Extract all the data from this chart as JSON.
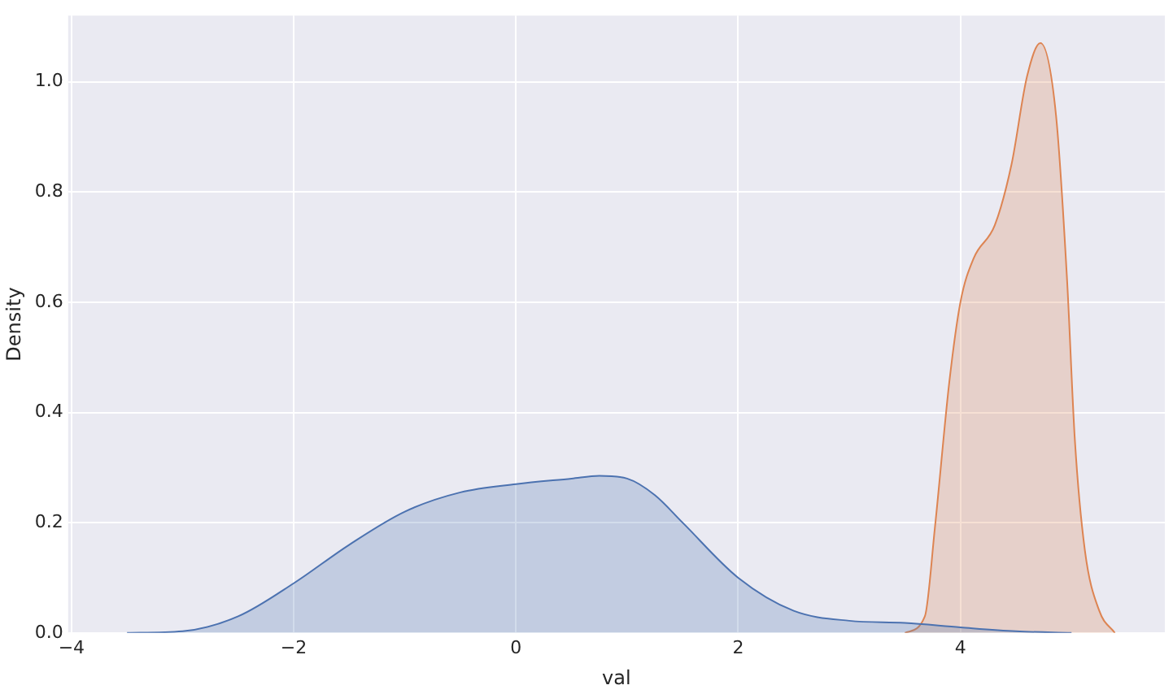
{
  "chart_data": {
    "type": "area",
    "xlabel": "val",
    "ylabel": "Density",
    "xlim": [
      -4.03,
      5.84
    ],
    "ylim": [
      0,
      1.12
    ],
    "xticks": [
      -4,
      -2,
      0,
      2,
      4
    ],
    "yticks": [
      {
        "value": 0,
        "label": "0.0"
      },
      {
        "value": 0.2,
        "label": "0.2"
      },
      {
        "value": 0.4,
        "label": "0.4"
      },
      {
        "value": 0.6,
        "label": "0.6"
      },
      {
        "value": 0.8,
        "label": "0.8"
      },
      {
        "value": 1,
        "label": "1.0"
      }
    ],
    "grid": true,
    "legend": false,
    "series": [
      {
        "color": "#4c72b0",
        "x": [
          -3.5,
          -3,
          -2.5,
          -2,
          -1.5,
          -1,
          -0.5,
          0,
          0.5,
          0.75,
          1,
          1.25,
          1.5,
          2,
          2.5,
          3,
          3.5,
          4,
          4.5,
          5
        ],
        "values": [
          0,
          0.003,
          0.03,
          0.09,
          0.16,
          0.22,
          0.255,
          0.27,
          0.28,
          0.285,
          0.28,
          0.25,
          0.2,
          0.1,
          0.04,
          0.022,
          0.018,
          0.01,
          0.003,
          0
        ]
      },
      {
        "color": "#dd8452",
        "x": [
          3.5,
          3.68,
          3.77,
          3.9,
          4,
          4.12,
          4.31,
          4.46,
          4.6,
          4.72,
          4.86,
          4.96,
          5.03,
          5.12,
          5.25,
          5.39
        ],
        "values": [
          0,
          0.03,
          0.19,
          0.455,
          0.6,
          0.68,
          0.74,
          0.85,
          1.01,
          1.07,
          0.94,
          0.64,
          0.35,
          0.15,
          0.04,
          0
        ]
      }
    ]
  }
}
